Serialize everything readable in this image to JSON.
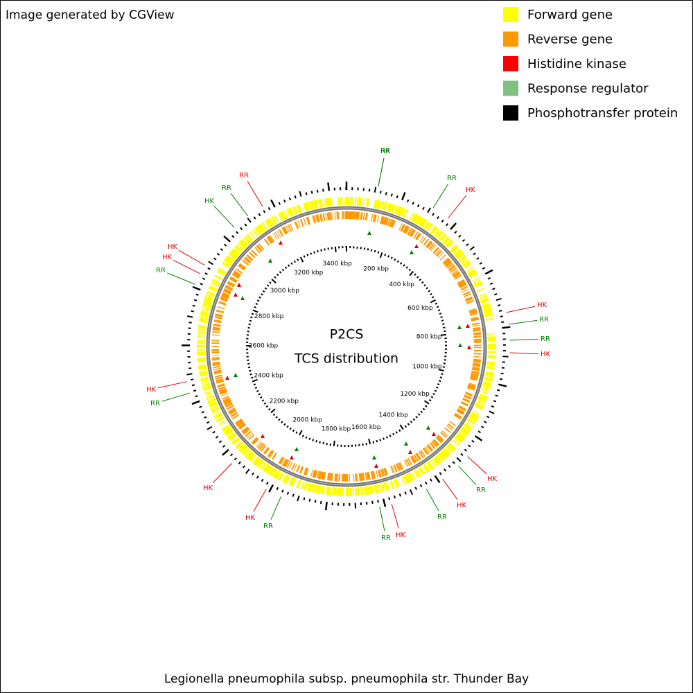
{
  "header": {
    "credit": "Image generated by CGView"
  },
  "legend": {
    "items": [
      {
        "label": "Forward gene",
        "color": "#ffff00"
      },
      {
        "label": "Reverse gene",
        "color": "#ff9900"
      },
      {
        "label": "Histidine kinase",
        "color": "#ff0000"
      },
      {
        "label": "Response regulator",
        "color": "#80c080"
      },
      {
        "label": "Phosphotransfer protein",
        "color": "#000000"
      }
    ]
  },
  "center": {
    "title": "P2CS",
    "subtitle": "TCS distribution"
  },
  "scale": {
    "labels": [
      "200 kbp",
      "400 kbp",
      "600 kbp",
      "800 kbp",
      "1000 kbp",
      "1200 kbp",
      "1400 kbp",
      "1600 kbp",
      "1800 kbp",
      "2000 kbp",
      "2200 kbp",
      "2400 kbp",
      "2600 kbp",
      "2800 kbp",
      "3000 kbp",
      "3200 kbp",
      "3400 kbp"
    ]
  },
  "features": {
    "labels": [
      "RR",
      "RR",
      "HK",
      "HK",
      "RR",
      "RR",
      "HK",
      "HK",
      "RR",
      "HK",
      "RR",
      "HK",
      "RR",
      "HK",
      "RR",
      "HK",
      "HK",
      "RR",
      "RR",
      "HK",
      "HK",
      "HK",
      "RR",
      "RR",
      "HK"
    ]
  },
  "footer": {
    "organism": "Legionella pneumophila subsp. pneumophila str. Thunder Bay"
  }
}
